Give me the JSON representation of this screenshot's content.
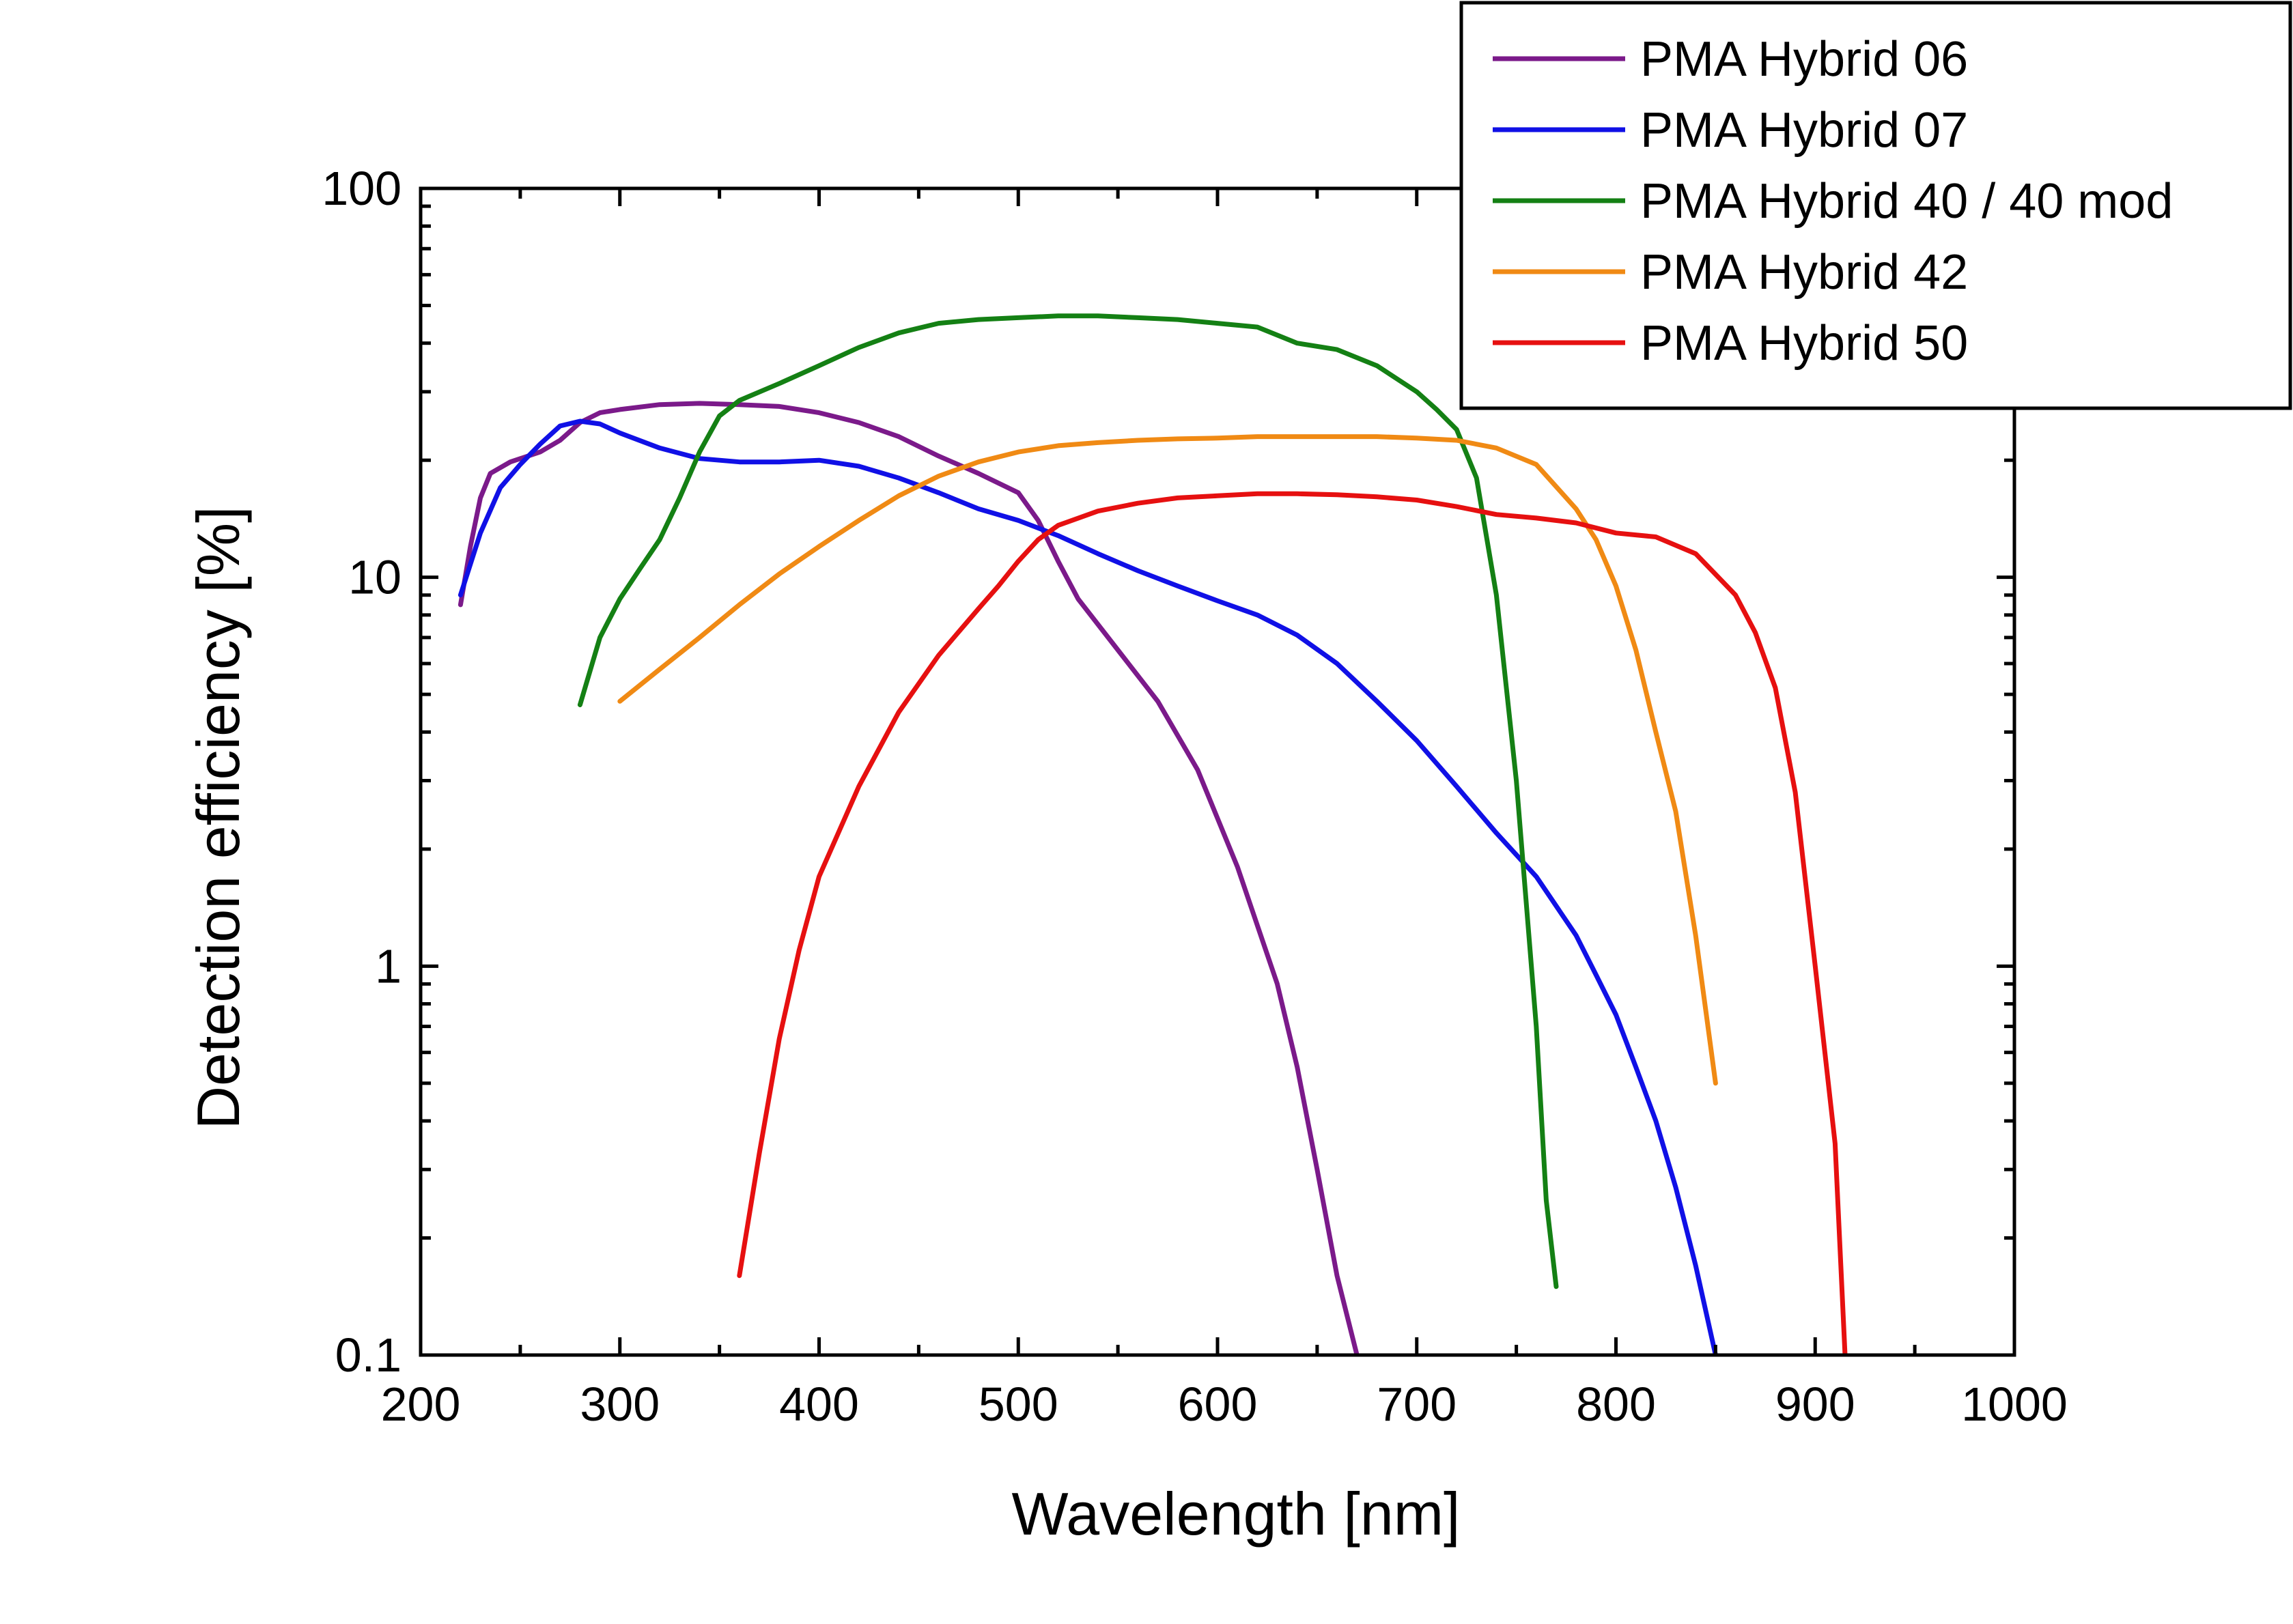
{
  "chart_data": {
    "type": "line",
    "title": "",
    "xlabel": "Wavelength [nm]",
    "ylabel": "Detection efficiency [%]",
    "xlim": [
      200,
      1000
    ],
    "ylim": [
      0.1,
      100
    ],
    "yscale": "log",
    "grid": false,
    "legend_position": "top-right",
    "xticks": [
      200,
      300,
      400,
      500,
      600,
      700,
      800,
      900,
      1000
    ],
    "xtick_labels": [
      "200",
      "300",
      "400",
      "500",
      "600",
      "700",
      "800",
      "900",
      "1000"
    ],
    "yticks": [
      0.1,
      1,
      10,
      100
    ],
    "ytick_labels": [
      "0.1",
      "1",
      "10",
      "100"
    ],
    "series": [
      {
        "name": "PMA Hybrid 06",
        "color": "#7b1a8a",
        "points": [
          [
            220,
            8.5
          ],
          [
            225,
            12
          ],
          [
            230,
            16
          ],
          [
            235,
            18.5
          ],
          [
            245,
            19.8
          ],
          [
            260,
            21
          ],
          [
            270,
            22.5
          ],
          [
            280,
            25
          ],
          [
            290,
            26.5
          ],
          [
            300,
            27
          ],
          [
            320,
            27.8
          ],
          [
            340,
            28
          ],
          [
            360,
            27.8
          ],
          [
            380,
            27.5
          ],
          [
            400,
            26.5
          ],
          [
            420,
            25
          ],
          [
            440,
            23
          ],
          [
            460,
            20.5
          ],
          [
            480,
            18.5
          ],
          [
            500,
            16.5
          ],
          [
            510,
            14
          ],
          [
            520,
            11
          ],
          [
            530,
            8.8
          ],
          [
            550,
            6.5
          ],
          [
            570,
            4.8
          ],
          [
            590,
            3.2
          ],
          [
            610,
            1.8
          ],
          [
            630,
            0.9
          ],
          [
            640,
            0.55
          ],
          [
            650,
            0.3
          ],
          [
            660,
            0.16
          ],
          [
            670,
            0.1
          ]
        ]
      },
      {
        "name": "PMA Hybrid 07",
        "color": "#1010e6",
        "points": [
          [
            220,
            9
          ],
          [
            230,
            13
          ],
          [
            240,
            17
          ],
          [
            250,
            19.5
          ],
          [
            260,
            22
          ],
          [
            270,
            24.5
          ],
          [
            280,
            25.2
          ],
          [
            290,
            24.8
          ],
          [
            300,
            23.5
          ],
          [
            320,
            21.5
          ],
          [
            340,
            20.2
          ],
          [
            360,
            19.8
          ],
          [
            380,
            19.8
          ],
          [
            400,
            20
          ],
          [
            420,
            19.3
          ],
          [
            440,
            18
          ],
          [
            460,
            16.5
          ],
          [
            480,
            15
          ],
          [
            500,
            14
          ],
          [
            520,
            12.8
          ],
          [
            540,
            11.5
          ],
          [
            560,
            10.4
          ],
          [
            580,
            9.5
          ],
          [
            600,
            8.7
          ],
          [
            620,
            8
          ],
          [
            640,
            7.1
          ],
          [
            660,
            6
          ],
          [
            680,
            4.8
          ],
          [
            700,
            3.8
          ],
          [
            720,
            2.9
          ],
          [
            740,
            2.2
          ],
          [
            760,
            1.7
          ],
          [
            780,
            1.2
          ],
          [
            790,
            0.95
          ],
          [
            800,
            0.75
          ],
          [
            810,
            0.55
          ],
          [
            820,
            0.4
          ],
          [
            830,
            0.27
          ],
          [
            840,
            0.17
          ],
          [
            850,
            0.1
          ]
        ]
      },
      {
        "name": "PMA Hybrid 40 / 40 mod",
        "color": "#148014",
        "points": [
          [
            280,
            4.7
          ],
          [
            290,
            7
          ],
          [
            300,
            8.8
          ],
          [
            310,
            10.5
          ],
          [
            320,
            12.5
          ],
          [
            330,
            16
          ],
          [
            340,
            21
          ],
          [
            350,
            26
          ],
          [
            360,
            28.5
          ],
          [
            380,
            31.5
          ],
          [
            400,
            35
          ],
          [
            420,
            39
          ],
          [
            440,
            42.5
          ],
          [
            460,
            45
          ],
          [
            480,
            46
          ],
          [
            500,
            46.5
          ],
          [
            520,
            47
          ],
          [
            540,
            47
          ],
          [
            560,
            46.5
          ],
          [
            580,
            46
          ],
          [
            600,
            45
          ],
          [
            620,
            44
          ],
          [
            640,
            40
          ],
          [
            660,
            38.5
          ],
          [
            680,
            35
          ],
          [
            700,
            30
          ],
          [
            710,
            27
          ],
          [
            720,
            24
          ],
          [
            730,
            18
          ],
          [
            740,
            9
          ],
          [
            750,
            3
          ],
          [
            760,
            0.7
          ],
          [
            765,
            0.25
          ],
          [
            770,
            0.15
          ]
        ]
      },
      {
        "name": "PMA Hybrid 42",
        "color": "#f08a14",
        "points": [
          [
            300,
            4.8
          ],
          [
            320,
            5.8
          ],
          [
            340,
            7
          ],
          [
            360,
            8.5
          ],
          [
            380,
            10.2
          ],
          [
            400,
            12
          ],
          [
            420,
            14
          ],
          [
            440,
            16.2
          ],
          [
            460,
            18.2
          ],
          [
            480,
            19.8
          ],
          [
            500,
            21
          ],
          [
            520,
            21.8
          ],
          [
            540,
            22.2
          ],
          [
            560,
            22.5
          ],
          [
            580,
            22.7
          ],
          [
            600,
            22.8
          ],
          [
            620,
            23
          ],
          [
            640,
            23
          ],
          [
            660,
            23
          ],
          [
            680,
            23
          ],
          [
            700,
            22.8
          ],
          [
            720,
            22.5
          ],
          [
            740,
            21.5
          ],
          [
            760,
            19.5
          ],
          [
            780,
            15
          ],
          [
            790,
            12.5
          ],
          [
            800,
            9.5
          ],
          [
            810,
            6.5
          ],
          [
            820,
            4
          ],
          [
            830,
            2.5
          ],
          [
            840,
            1.2
          ],
          [
            850,
            0.5
          ]
        ]
      },
      {
        "name": "PMA Hybrid 50",
        "color": "#e61010",
        "points": [
          [
            360,
            0.16
          ],
          [
            370,
            0.33
          ],
          [
            380,
            0.65
          ],
          [
            390,
            1.1
          ],
          [
            400,
            1.7
          ],
          [
            420,
            2.9
          ],
          [
            440,
            4.5
          ],
          [
            460,
            6.3
          ],
          [
            480,
            8.3
          ],
          [
            490,
            9.5
          ],
          [
            500,
            11
          ],
          [
            510,
            12.5
          ],
          [
            520,
            13.6
          ],
          [
            540,
            14.8
          ],
          [
            560,
            15.5
          ],
          [
            580,
            16
          ],
          [
            600,
            16.2
          ],
          [
            620,
            16.4
          ],
          [
            640,
            16.4
          ],
          [
            660,
            16.3
          ],
          [
            680,
            16.1
          ],
          [
            700,
            15.8
          ],
          [
            720,
            15.2
          ],
          [
            740,
            14.5
          ],
          [
            760,
            14.2
          ],
          [
            780,
            13.8
          ],
          [
            800,
            13
          ],
          [
            820,
            12.7
          ],
          [
            840,
            11.5
          ],
          [
            860,
            9
          ],
          [
            870,
            7.2
          ],
          [
            880,
            5.2
          ],
          [
            890,
            2.8
          ],
          [
            900,
            1
          ],
          [
            910,
            0.35
          ],
          [
            915,
            0.1
          ]
        ]
      }
    ]
  }
}
